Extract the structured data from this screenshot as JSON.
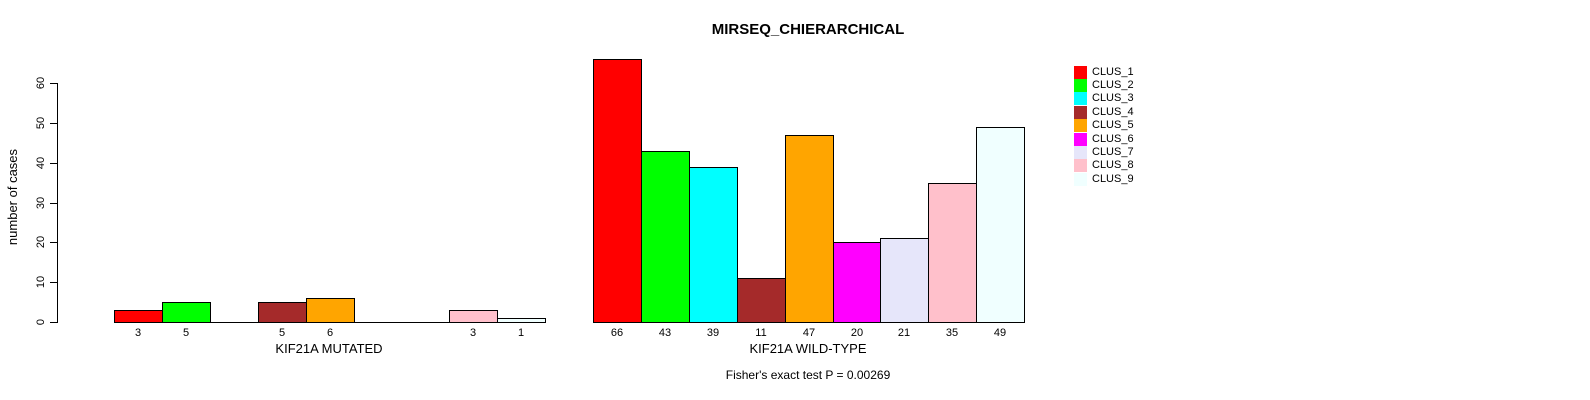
{
  "title": "MIRSEQ_CHIERARCHICAL",
  "chart_data": {
    "type": "bar",
    "title": "MIRSEQ_CHIERARCHICAL",
    "ylabel": "number of cases",
    "xlabel": "",
    "ylim": [
      0,
      60
    ],
    "yticks": [
      0,
      10,
      20,
      30,
      40,
      50,
      60
    ],
    "grid": false,
    "legend_position": "right",
    "categories": [
      "CLUS_1",
      "CLUS_2",
      "CLUS_3",
      "CLUS_4",
      "CLUS_5",
      "CLUS_6",
      "CLUS_7",
      "CLUS_8",
      "CLUS_9"
    ],
    "colors": [
      "#FF0000",
      "#00FF00",
      "#00FFFF",
      "#A52A2A",
      "#FFA500",
      "#FF00FF",
      "#E6E6FA",
      "#FFC0CB",
      "#F0FFFF"
    ],
    "groups": [
      {
        "label": "KIF21A MUTATED",
        "values": [
          3,
          5,
          0,
          5,
          6,
          0,
          0,
          3,
          1
        ],
        "shown_value_labels": [
          "3",
          "5",
          "5",
          "6",
          "3",
          "1"
        ]
      },
      {
        "label": "KIF21A WILD-TYPE",
        "values": [
          66,
          43,
          39,
          11,
          47,
          20,
          21,
          35,
          49
        ],
        "shown_value_labels": [
          "66",
          "43",
          "39",
          "11",
          "47",
          "20",
          "21",
          "35",
          "49"
        ]
      }
    ],
    "annotation": "Fisher's exact test P = 0.00269"
  },
  "legend": {
    "items": [
      {
        "label": "CLUS_1",
        "color": "#FF0000"
      },
      {
        "label": "CLUS_2",
        "color": "#00FF00"
      },
      {
        "label": "CLUS_3",
        "color": "#00FFFF"
      },
      {
        "label": "CLUS_4",
        "color": "#A52A2A"
      },
      {
        "label": "CLUS_5",
        "color": "#FFA500"
      },
      {
        "label": "CLUS_6",
        "color": "#FF00FF"
      },
      {
        "label": "CLUS_7",
        "color": "#E6E6FA"
      },
      {
        "label": "CLUS_8",
        "color": "#FFC0CB"
      },
      {
        "label": "CLUS_9",
        "color": "#F0FFFF"
      }
    ]
  }
}
